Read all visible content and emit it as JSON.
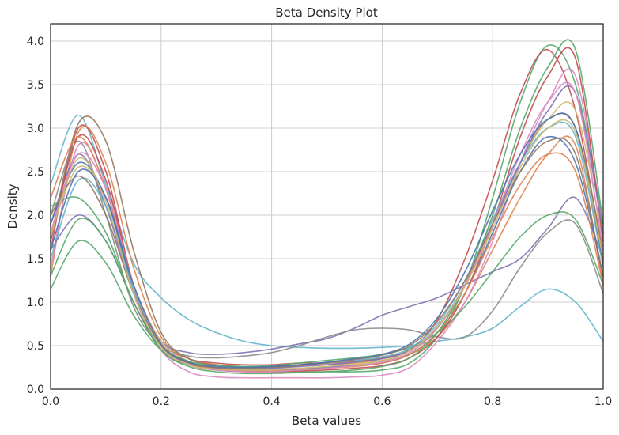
{
  "chart_data": {
    "type": "line",
    "title": "Beta Density Plot",
    "xlabel": "Beta values",
    "ylabel": "Density",
    "xlim": [
      0.0,
      1.0
    ],
    "ylim": [
      0.0,
      4.2
    ],
    "x_ticks": [
      "0.0",
      "0.2",
      "0.4",
      "0.6",
      "0.8",
      "1.0"
    ],
    "y_ticks": [
      "0.0",
      "0.5",
      "1.0",
      "1.5",
      "2.0",
      "2.5",
      "3.0",
      "3.5",
      "4.0"
    ],
    "grid": true,
    "legend": "none",
    "x": [
      0.0,
      0.05,
      0.1,
      0.15,
      0.2,
      0.25,
      0.3,
      0.35,
      0.4,
      0.45,
      0.5,
      0.55,
      0.6,
      0.65,
      0.7,
      0.75,
      0.8,
      0.85,
      0.9,
      0.95,
      1.0
    ],
    "series": [
      {
        "values": [
          2.35,
          3.15,
          2.35,
          1.45,
          1.05,
          0.8,
          0.65,
          0.55,
          0.5,
          0.48,
          0.47,
          0.47,
          0.48,
          0.5,
          0.55,
          0.6,
          0.7,
          0.95,
          1.15,
          1.0,
          0.55
        ],
        "color": "#64b5cd"
      },
      {
        "values": [
          1.15,
          1.7,
          1.45,
          0.85,
          0.45,
          0.3,
          0.25,
          0.22,
          0.2,
          0.2,
          0.2,
          0.2,
          0.22,
          0.3,
          0.6,
          1.2,
          2.2,
          3.3,
          3.95,
          3.5,
          1.9
        ],
        "color": "#55a868"
      },
      {
        "values": [
          1.6,
          3.0,
          2.5,
          1.2,
          0.55,
          0.35,
          0.3,
          0.28,
          0.28,
          0.3,
          0.3,
          0.32,
          0.35,
          0.45,
          0.8,
          1.5,
          2.4,
          3.4,
          3.9,
          3.2,
          1.5
        ],
        "color": "#c44e52"
      },
      {
        "values": [
          1.3,
          2.95,
          2.6,
          1.4,
          0.6,
          0.35,
          0.28,
          0.25,
          0.25,
          0.27,
          0.28,
          0.3,
          0.33,
          0.4,
          0.6,
          1.0,
          1.6,
          2.2,
          2.7,
          2.8,
          1.2
        ],
        "color": "#dd8452"
      },
      {
        "values": [
          1.9,
          2.7,
          2.1,
          1.1,
          0.55,
          0.42,
          0.4,
          0.42,
          0.46,
          0.52,
          0.58,
          0.7,
          0.85,
          0.95,
          1.05,
          1.2,
          1.35,
          1.5,
          1.85,
          2.2,
          1.5
        ],
        "color": "#8172b3"
      },
      {
        "values": [
          1.7,
          3.05,
          2.85,
          1.6,
          0.65,
          0.35,
          0.28,
          0.26,
          0.26,
          0.28,
          0.3,
          0.33,
          0.36,
          0.45,
          0.7,
          1.2,
          1.9,
          2.6,
          3.1,
          3.0,
          1.6
        ],
        "color": "#937860"
      },
      {
        "values": [
          1.4,
          2.8,
          2.3,
          1.1,
          0.45,
          0.2,
          0.14,
          0.13,
          0.13,
          0.13,
          0.13,
          0.14,
          0.16,
          0.25,
          0.55,
          1.0,
          1.7,
          2.6,
          3.3,
          3.6,
          1.8
        ],
        "color": "#da8bc3"
      },
      {
        "values": [
          2.0,
          2.85,
          2.0,
          0.95,
          0.5,
          0.38,
          0.36,
          0.38,
          0.42,
          0.5,
          0.6,
          0.68,
          0.7,
          0.68,
          0.6,
          0.6,
          0.9,
          1.4,
          1.8,
          1.9,
          1.1
        ],
        "color": "#8c8c8c"
      },
      {
        "values": [
          1.8,
          2.55,
          2.2,
          1.2,
          0.55,
          0.32,
          0.25,
          0.23,
          0.23,
          0.24,
          0.26,
          0.28,
          0.32,
          0.42,
          0.7,
          1.2,
          1.9,
          2.6,
          3.1,
          3.2,
          1.7
        ],
        "color": "#ccb974"
      },
      {
        "values": [
          1.9,
          2.6,
          2.2,
          1.15,
          0.5,
          0.3,
          0.24,
          0.22,
          0.22,
          0.23,
          0.25,
          0.27,
          0.3,
          0.4,
          0.65,
          1.1,
          1.8,
          2.5,
          2.9,
          2.6,
          1.3
        ],
        "color": "#4c72b0"
      },
      {
        "values": [
          2.1,
          2.2,
          1.8,
          1.0,
          0.5,
          0.32,
          0.27,
          0.26,
          0.27,
          0.3,
          0.33,
          0.36,
          0.4,
          0.48,
          0.65,
          0.95,
          1.35,
          1.75,
          2.0,
          1.95,
          1.2
        ],
        "color": "#55a868"
      },
      {
        "values": [
          1.7,
          2.9,
          2.4,
          1.2,
          0.5,
          0.28,
          0.22,
          0.2,
          0.2,
          0.21,
          0.22,
          0.24,
          0.27,
          0.36,
          0.6,
          1.1,
          1.9,
          2.9,
          3.6,
          3.8,
          1.7
        ],
        "color": "#c44e52"
      },
      {
        "values": [
          1.5,
          2.4,
          2.1,
          1.15,
          0.5,
          0.3,
          0.25,
          0.24,
          0.25,
          0.27,
          0.3,
          0.33,
          0.37,
          0.47,
          0.75,
          1.25,
          1.95,
          2.6,
          3.0,
          2.9,
          1.4
        ],
        "color": "#64b5cd"
      },
      {
        "values": [
          1.6,
          2.0,
          1.7,
          1.0,
          0.45,
          0.28,
          0.24,
          0.23,
          0.24,
          0.26,
          0.28,
          0.31,
          0.35,
          0.45,
          0.72,
          1.2,
          1.9,
          2.6,
          3.2,
          3.4,
          1.8
        ],
        "color": "#8172b3"
      },
      {
        "values": [
          2.2,
          2.9,
          2.3,
          1.2,
          0.52,
          0.3,
          0.23,
          0.21,
          0.21,
          0.22,
          0.24,
          0.26,
          0.3,
          0.4,
          0.65,
          1.1,
          1.75,
          2.35,
          2.7,
          2.5,
          1.2
        ],
        "color": "#dd8452"
      },
      {
        "values": [
          1.3,
          1.95,
          1.7,
          1.0,
          0.45,
          0.26,
          0.2,
          0.18,
          0.18,
          0.19,
          0.2,
          0.22,
          0.26,
          0.36,
          0.65,
          1.2,
          2.0,
          3.0,
          3.7,
          3.9,
          1.9
        ],
        "color": "#55a868"
      },
      {
        "values": [
          1.8,
          2.7,
          2.3,
          1.2,
          0.5,
          0.28,
          0.22,
          0.2,
          0.2,
          0.22,
          0.24,
          0.27,
          0.31,
          0.42,
          0.7,
          1.2,
          1.9,
          2.7,
          3.3,
          3.4,
          1.6
        ],
        "color": "#da8bc3"
      },
      {
        "values": [
          2.0,
          2.45,
          2.0,
          1.1,
          0.5,
          0.3,
          0.25,
          0.24,
          0.25,
          0.27,
          0.3,
          0.34,
          0.39,
          0.5,
          0.78,
          1.25,
          1.9,
          2.5,
          2.85,
          2.7,
          1.3
        ],
        "color": "#937860"
      },
      {
        "values": [
          1.6,
          2.5,
          2.2,
          1.2,
          0.52,
          0.31,
          0.26,
          0.25,
          0.26,
          0.28,
          0.31,
          0.35,
          0.4,
          0.52,
          0.82,
          1.35,
          2.05,
          2.7,
          3.1,
          3.0,
          1.45
        ],
        "color": "#4c72b0"
      },
      {
        "values": [
          1.75,
          2.65,
          2.15,
          1.1,
          0.48,
          0.28,
          0.23,
          0.22,
          0.22,
          0.24,
          0.26,
          0.29,
          0.33,
          0.44,
          0.72,
          1.18,
          1.85,
          2.55,
          3.0,
          2.95,
          1.5
        ],
        "color": "#ccb974"
      }
    ]
  }
}
